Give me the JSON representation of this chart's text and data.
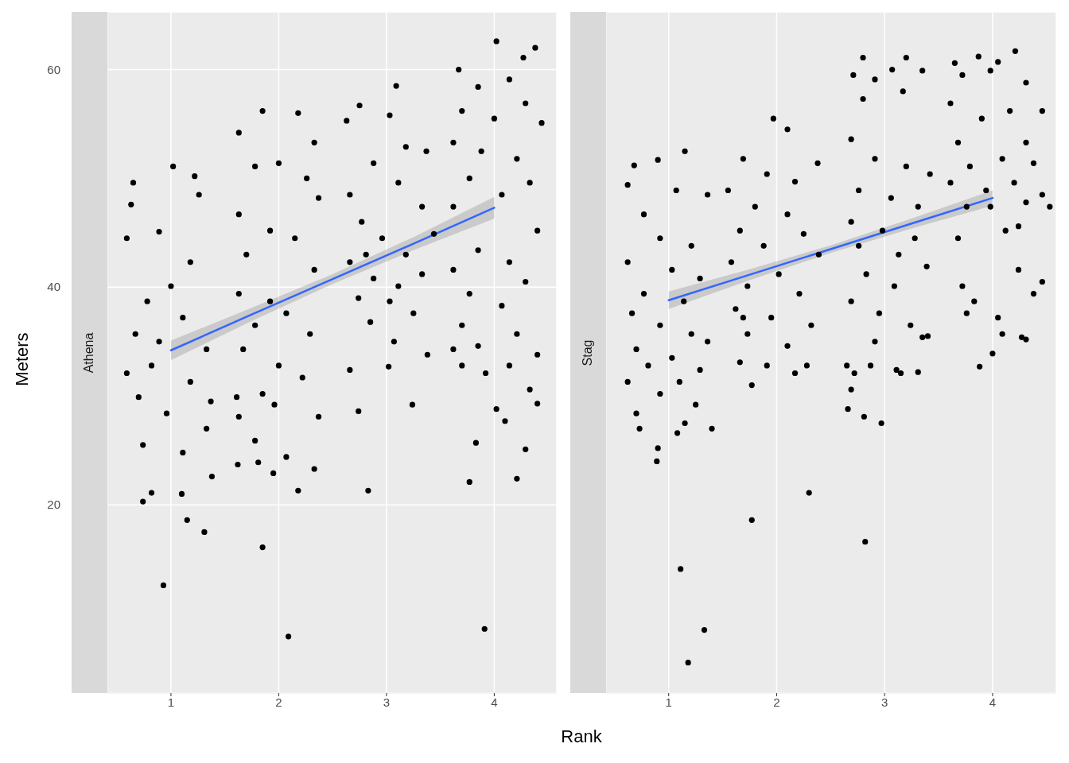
{
  "chart_data": [
    {
      "type": "scatter",
      "title": "Athena",
      "xlabel": "Rank",
      "ylabel": "Meters",
      "xlim": [
        0.41,
        4.58
      ],
      "ylim": [
        2.7,
        65.3
      ],
      "xticks": [
        1,
        2,
        3,
        4
      ],
      "yticks": [
        20,
        40,
        60
      ],
      "grid": true,
      "series": [
        {
          "marker": "circle",
          "color": "#000000",
          "x": [
            0.93,
            1.85,
            2.09,
            3.91,
            1.31,
            1.15,
            2.83,
            3.77,
            4.21,
            0.74,
            0.82,
            1.1,
            1.62,
            1.81,
            1.95,
            2.18,
            0.59,
            0.65,
            0.63,
            1.02,
            1.22,
            1.26,
            0.89,
            1.18,
            1.0,
            0.78,
            1.11,
            0.67,
            1.33,
            0.82,
            1.18,
            0.7,
            0.96,
            1.33,
            0.74,
            1.11,
            1.37,
            0.89,
            0.59,
            1.38,
            1.63,
            1.85,
            2.18,
            2.33,
            1.78,
            2.0,
            2.26,
            1.63,
            1.92,
            2.15,
            1.7,
            2.33,
            1.63,
            1.92,
            2.07,
            1.78,
            2.29,
            1.67,
            2.0,
            2.22,
            1.85,
            1.63,
            1.96,
            2.37,
            1.78,
            2.07,
            2.33,
            1.61,
            2.37,
            2.63,
            2.75,
            3.09,
            3.03,
            3.18,
            3.37,
            2.88,
            2.66,
            3.11,
            3.33,
            2.77,
            2.96,
            3.18,
            2.66,
            2.88,
            3.11,
            3.33,
            2.74,
            3.03,
            3.25,
            2.85,
            2.66,
            3.02,
            3.24,
            2.74,
            3.07,
            3.38,
            3.44,
            2.81,
            3.67,
            4.02,
            4.27,
            4.38,
            3.85,
            4.14,
            4.29,
            3.7,
            4.0,
            4.44,
            3.62,
            3.88,
            4.21,
            3.77,
            4.07,
            4.33,
            3.62,
            4.4,
            3.85,
            4.14,
            3.62,
            4.29,
            3.77,
            4.07,
            3.7,
            4.21,
            3.85,
            3.62,
            4.4,
            3.92,
            4.14,
            3.7,
            4.33,
            4.02,
            4.1,
            4.29,
            3.83,
            4.4
          ],
          "values": [
            12.6,
            16.1,
            7.9,
            8.6,
            17.5,
            18.6,
            21.3,
            22.1,
            22.4,
            20.3,
            21.1,
            21.0,
            23.7,
            23.9,
            22.9,
            21.3,
            32.1,
            49.6,
            47.6,
            51.1,
            50.2,
            48.5,
            45.1,
            42.3,
            40.1,
            38.7,
            37.2,
            35.7,
            34.3,
            32.8,
            31.3,
            29.9,
            28.4,
            27.0,
            25.5,
            24.8,
            29.5,
            35.0,
            44.5,
            22.6,
            54.2,
            56.2,
            56.0,
            53.3,
            51.1,
            51.4,
            50.0,
            46.7,
            45.2,
            44.5,
            43.0,
            41.6,
            39.4,
            38.7,
            37.6,
            36.5,
            35.7,
            34.3,
            32.8,
            31.7,
            30.2,
            28.1,
            29.2,
            28.1,
            25.9,
            24.4,
            23.3,
            29.9,
            48.2,
            55.3,
            56.7,
            58.5,
            55.8,
            52.9,
            52.5,
            51.4,
            48.5,
            49.6,
            47.4,
            46.0,
            44.5,
            43.0,
            42.3,
            40.8,
            40.1,
            41.2,
            39.0,
            38.7,
            37.6,
            36.8,
            32.4,
            32.7,
            29.2,
            28.6,
            35.0,
            33.8,
            44.9,
            43.0,
            60.0,
            62.6,
            61.1,
            62.0,
            58.4,
            59.1,
            56.9,
            56.2,
            55.5,
            55.1,
            53.3,
            52.5,
            51.8,
            50.0,
            48.5,
            49.6,
            47.4,
            45.2,
            43.4,
            42.3,
            41.6,
            40.5,
            39.4,
            38.3,
            36.5,
            35.7,
            34.6,
            34.3,
            33.8,
            32.1,
            32.8,
            32.8,
            30.6,
            28.8,
            27.7,
            25.1,
            25.7,
            29.3
          ]
        },
        {
          "type": "line",
          "color": "#3366ff",
          "line_style": "solid",
          "x": [
            1,
            1.75,
            2.5,
            3.25,
            4
          ],
          "values": [
            34.2,
            37.5,
            40.75,
            44.0,
            47.3
          ],
          "lower": [
            33.3,
            36.9,
            40.3,
            43.4,
            46.3
          ],
          "upper": [
            35.1,
            38.1,
            41.2,
            44.6,
            48.3
          ]
        }
      ]
    },
    {
      "type": "scatter",
      "title": "Stag",
      "xlim": [
        0.42,
        4.59
      ],
      "ylim": [
        2.7,
        65.3
      ],
      "xticks": [
        1,
        2,
        3,
        4
      ],
      "yticks": [
        20,
        40,
        60
      ],
      "grid": true,
      "tick_labels": "x",
      "series": [
        {
          "marker": "circle",
          "color": "#000000",
          "x": [
            1.11,
            1.18,
            1.33,
            1.15,
            0.68,
            0.9,
            0.62,
            1.07,
            1.36,
            0.77,
            0.92,
            1.21,
            0.62,
            1.03,
            1.29,
            0.77,
            1.14,
            0.66,
            0.92,
            1.21,
            1.36,
            0.7,
            1.03,
            0.81,
            1.29,
            0.62,
            1.1,
            0.92,
            0.7,
            1.25,
            0.73,
            0.9,
            0.89,
            1.08,
            1.4,
            1.15,
            1.77,
            2.3,
            1.97,
            2.1,
            1.69,
            1.91,
            2.17,
            2.38,
            1.55,
            1.8,
            2.1,
            1.66,
            2.25,
            1.88,
            2.39,
            1.58,
            2.02,
            1.73,
            2.21,
            1.62,
            1.95,
            2.32,
            1.73,
            2.1,
            1.66,
            1.91,
            2.17,
            1.77,
            2.28,
            1.69,
            2.82,
            2.97,
            2.81,
            2.66,
            2.8,
            3.2,
            3.07,
            2.91,
            3.35,
            2.71,
            2.8,
            3.17,
            2.69,
            2.91,
            3.2,
            3.42,
            2.76,
            3.06,
            3.31,
            2.69,
            2.98,
            3.28,
            2.76,
            3.13,
            3.39,
            2.83,
            3.09,
            2.69,
            2.95,
            3.24,
            3.35,
            2.91,
            2.65,
            2.87,
            3.11,
            3.31,
            2.69,
            2.72,
            3.4,
            3.15,
            3.65,
            3.87,
            4.21,
            4.05,
            3.72,
            3.98,
            3.61,
            4.31,
            4.46,
            3.9,
            4.16,
            3.68,
            4.31,
            3.79,
            4.09,
            4.38,
            3.61,
            3.94,
            4.2,
            4.46,
            3.76,
            4.31,
            4.53,
            3.68,
            4.12,
            3.98,
            3.72,
            3.83,
            3.76,
            4.24,
            4.46,
            4.38,
            3.88,
            4.05,
            4.09,
            4.27,
            4.31,
            4.0,
            4.24
          ],
          "values": [
            14.1,
            5.5,
            8.5,
            52.5,
            51.2,
            51.7,
            49.4,
            48.9,
            48.5,
            46.7,
            44.5,
            43.8,
            42.3,
            41.6,
            40.8,
            39.4,
            38.7,
            37.6,
            36.5,
            35.7,
            35.0,
            34.3,
            33.5,
            32.8,
            32.4,
            31.3,
            31.3,
            30.2,
            28.4,
            29.2,
            27.0,
            25.2,
            24.0,
            26.6,
            27.0,
            27.5,
            18.6,
            21.1,
            55.5,
            54.5,
            51.8,
            50.4,
            49.7,
            51.4,
            48.9,
            47.4,
            46.7,
            45.2,
            44.9,
            43.8,
            43.0,
            42.3,
            41.2,
            40.1,
            39.4,
            38.0,
            37.2,
            36.5,
            35.7,
            34.6,
            33.1,
            32.8,
            32.1,
            31.0,
            32.8,
            37.2,
            16.6,
            27.5,
            28.1,
            28.8,
            61.1,
            61.1,
            60.0,
            59.1,
            59.9,
            59.5,
            57.3,
            58.0,
            53.6,
            51.8,
            51.1,
            50.4,
            48.9,
            48.2,
            47.4,
            46.0,
            45.2,
            44.5,
            43.8,
            43.0,
            41.9,
            41.2,
            40.1,
            38.7,
            37.6,
            36.5,
            35.4,
            35.0,
            32.8,
            32.8,
            32.4,
            32.2,
            30.6,
            32.1,
            35.5,
            32.1,
            60.6,
            61.2,
            61.7,
            60.7,
            59.5,
            59.9,
            56.9,
            58.8,
            56.2,
            55.5,
            56.2,
            53.3,
            53.3,
            51.1,
            51.8,
            51.4,
            49.6,
            48.9,
            49.6,
            48.5,
            47.4,
            47.8,
            47.4,
            44.5,
            45.2,
            47.4,
            40.1,
            38.7,
            37.6,
            41.6,
            40.5,
            39.4,
            32.7,
            37.2,
            35.7,
            35.4,
            35.2,
            33.9,
            45.6
          ]
        },
        {
          "type": "line",
          "color": "#3366ff",
          "line_style": "solid",
          "x": [
            1,
            1.75,
            2.5,
            3.25,
            4
          ],
          "values": [
            38.8,
            41.15,
            43.5,
            45.85,
            48.2
          ],
          "lower": [
            38.0,
            40.65,
            43.15,
            45.4,
            47.5
          ],
          "upper": [
            39.6,
            41.65,
            43.85,
            46.3,
            48.9
          ]
        }
      ]
    }
  ]
}
